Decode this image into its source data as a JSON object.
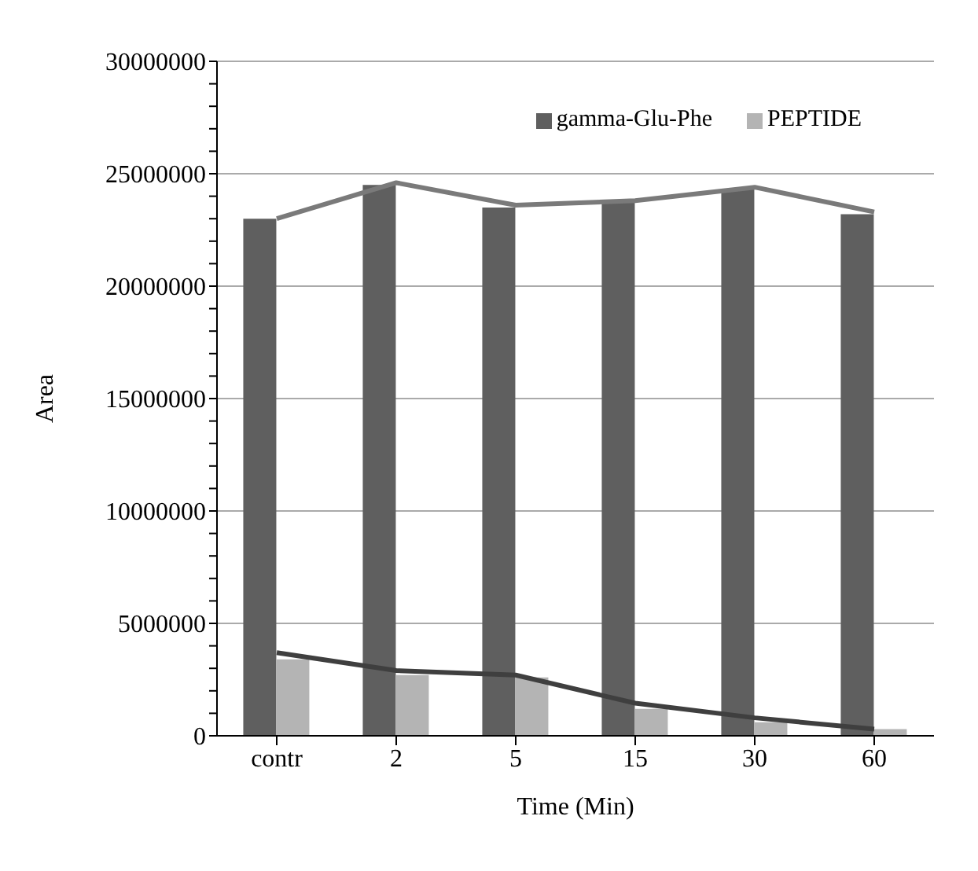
{
  "chart_data": {
    "type": "bar",
    "xlabel": "Time (Min)",
    "ylabel": "Area",
    "categories": [
      "contr",
      "2",
      "5",
      "15",
      "30",
      "60"
    ],
    "series": [
      {
        "name": "gamma-Glu-Phe",
        "color": "#5f5f5f",
        "values": [
          23000000,
          24500000,
          23500000,
          23800000,
          24300000,
          23200000
        ]
      },
      {
        "name": "PEPTIDE",
        "color": "#b4b4b4",
        "values": [
          3400000,
          2700000,
          2600000,
          1200000,
          600000,
          300000
        ]
      },
      {
        "type": "line",
        "color": "#7a7a7a",
        "values": [
          23000000,
          24600000,
          23600000,
          23800000,
          24400000,
          23300000
        ]
      },
      {
        "type": "line",
        "color": "#3f3f3f",
        "values": [
          3700000,
          2900000,
          2700000,
          1450000,
          800000,
          300000
        ]
      }
    ],
    "ylim": [
      0,
      30000000
    ],
    "yticks": [
      0,
      {
        "value": 1000000,
        "label": null
      },
      {
        "value": 2000000,
        "label": null
      },
      {
        "value": 3000000,
        "label": null
      },
      {
        "value": 4000000,
        "label": null
      },
      5000000,
      {
        "value": 6000000,
        "label": null
      },
      {
        "value": 7000000,
        "label": null
      },
      {
        "value": 8000000,
        "label": null
      },
      {
        "value": 9000000,
        "label": null
      },
      10000000,
      {
        "value": 11000000,
        "label": null
      },
      {
        "value": 12000000,
        "label": null
      },
      {
        "value": 13000000,
        "label": null
      },
      {
        "value": 14000000,
        "label": null
      },
      15000000,
      {
        "value": 16000000,
        "label": null
      },
      {
        "value": 17000000,
        "label": null
      },
      {
        "value": 18000000,
        "label": null
      },
      {
        "value": 19000000,
        "label": null
      },
      20000000,
      {
        "value": 21000000,
        "label": null
      },
      {
        "value": 22000000,
        "label": null
      },
      {
        "value": 23000000,
        "label": null
      },
      {
        "value": 24000000,
        "label": null
      },
      25000000,
      {
        "value": 26000000,
        "label": null
      },
      {
        "value": 27000000,
        "label": null
      },
      {
        "value": 28000000,
        "label": null
      },
      {
        "value": 29000000,
        "label": null
      },
      30000000
    ],
    "grid": "y",
    "legend": "top right",
    "marker": "none",
    "line_style": "solid"
  }
}
